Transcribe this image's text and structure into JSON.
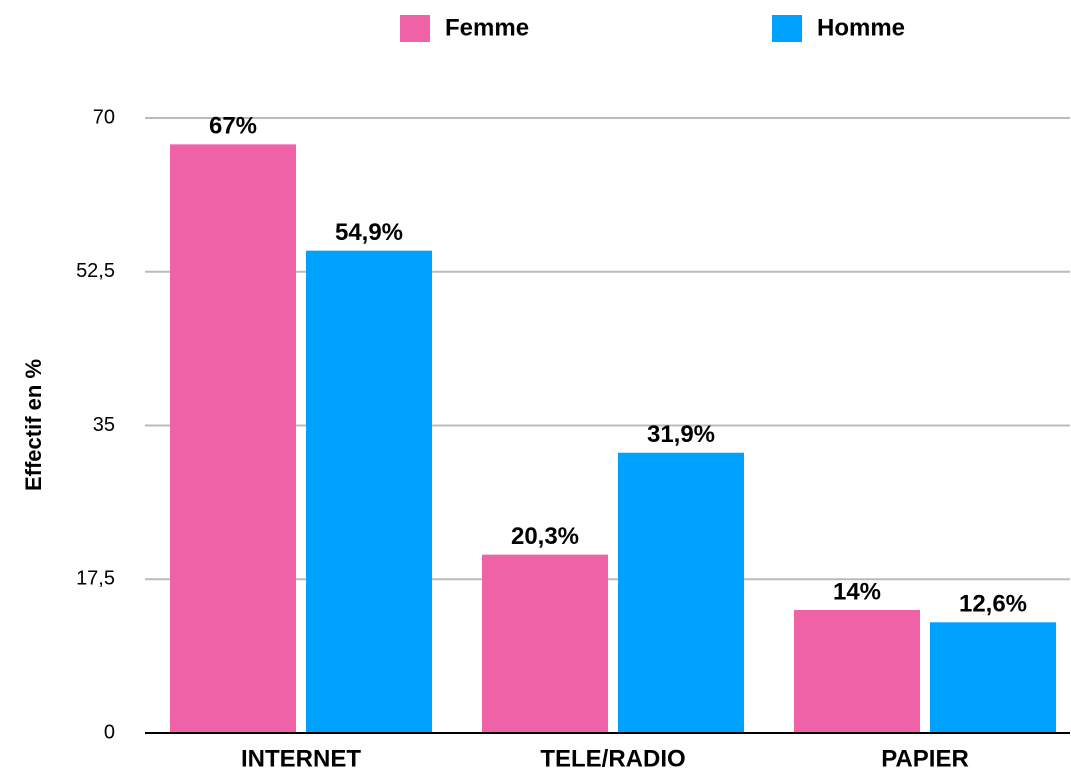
{
  "chart_data": {
    "type": "bar",
    "y_label": "Effectif en %",
    "categories": [
      "INTERNET",
      "TELE/RADIO",
      "PAPIER"
    ],
    "series": [
      {
        "name": "Femme",
        "color": "#ef62a7",
        "values": [
          67,
          20.3,
          14
        ],
        "value_labels": [
          "67%",
          "20,3%",
          "14%"
        ]
      },
      {
        "name": "Homme",
        "color": "#00a2ff",
        "values": [
          54.9,
          31.9,
          12.6
        ],
        "value_labels": [
          "54,9%",
          "31,9%",
          "12,6%"
        ]
      }
    ],
    "ylim": [
      0,
      70
    ],
    "yticks": [
      0,
      {
        "value": 17.5,
        "label": "17,5"
      },
      35,
      {
        "value": 52.5,
        "label": "52,5"
      },
      70
    ],
    "grid": true,
    "legend": "top"
  }
}
